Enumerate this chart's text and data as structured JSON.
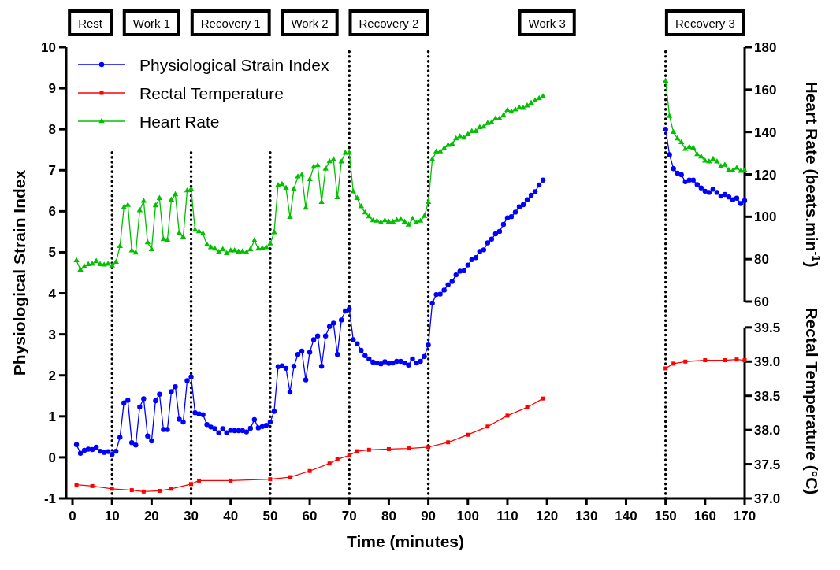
{
  "chart_data": {
    "type": "line",
    "xlabel": "Time (minutes)",
    "ylabel": "Physiological Strain Index",
    "y2label": "Heart Rate (beats.min$^{-1}$)",
    "y3label": "Rectal Temperature (°C)",
    "xlim": [
      -1,
      170
    ],
    "xticks": [
      0,
      10,
      20,
      30,
      40,
      50,
      60,
      70,
      80,
      90,
      100,
      110,
      120,
      130,
      140,
      150,
      160,
      170
    ],
    "ylim": [
      -1,
      10
    ],
    "yticks": [
      -1,
      0,
      1,
      2,
      3,
      4,
      5,
      6,
      7,
      8,
      9,
      10
    ],
    "y2lim": [
      60,
      180
    ],
    "y2ticks": [
      60,
      80,
      100,
      120,
      140,
      160,
      180
    ],
    "y3lim": [
      37,
      39.5
    ],
    "y3ticks": [
      {
        "value": 37,
        "label": "37.0"
      },
      37.5,
      {
        "value": 38,
        "label": "38.0"
      },
      38.5,
      {
        "value": 39,
        "label": "39.0"
      },
      39.5
    ],
    "legend": "top left",
    "line_style": "solid",
    "series": [
      {
        "name": "Physiological Strain Index",
        "color": "#0000ff",
        "marker": "circle",
        "axis": "y",
        "x": [
          1,
          2,
          3,
          4,
          5,
          6,
          7,
          8,
          9,
          10,
          11,
          12,
          13,
          14,
          15,
          16,
          17,
          18,
          19,
          20,
          21,
          22,
          23,
          24,
          25,
          26,
          27,
          28,
          29,
          30,
          31,
          32,
          33,
          34,
          35,
          36,
          37,
          38,
          39,
          40,
          41,
          42,
          43,
          44,
          45,
          46,
          47,
          48,
          49,
          50,
          51,
          52,
          53,
          54,
          55,
          56,
          57,
          58,
          59,
          60,
          61,
          62,
          63,
          64,
          65,
          66,
          67,
          68,
          69,
          70,
          71,
          72,
          73,
          74,
          75,
          76,
          77,
          78,
          79,
          80,
          81,
          82,
          83,
          84,
          85,
          86,
          87,
          88,
          89,
          90,
          91,
          92,
          93,
          94,
          95,
          96,
          97,
          98,
          99,
          100,
          101,
          102,
          103,
          104,
          105,
          106,
          107,
          108,
          109,
          110,
          111,
          112,
          113,
          114,
          115,
          116,
          117,
          118,
          119,
          135,
          150,
          151,
          152,
          153,
          154,
          155,
          156,
          157,
          158,
          159,
          160,
          161,
          162,
          163,
          164,
          165,
          166,
          167,
          168,
          169,
          170
        ],
        "values": [
          0.31,
          0.1,
          0.17,
          0.2,
          0.19,
          0.25,
          0.15,
          0.12,
          0.14,
          0.07,
          0.15,
          0.49,
          1.33,
          1.39,
          0.36,
          0.3,
          1.23,
          1.43,
          0.52,
          0.4,
          1.38,
          1.54,
          0.68,
          0.68,
          1.6,
          1.72,
          0.93,
          0.86,
          1.87,
          1.96,
          1.09,
          1.06,
          1.04,
          0.8,
          0.74,
          0.7,
          0.6,
          0.7,
          0.6,
          0.66,
          0.65,
          0.65,
          0.65,
          0.62,
          0.71,
          0.92,
          0.72,
          0.75,
          0.78,
          0.86,
          1.12,
          2.21,
          2.23,
          2.17,
          1.59,
          2.22,
          2.51,
          2.59,
          1.89,
          2.56,
          2.87,
          2.96,
          2.22,
          2.96,
          3.19,
          3.27,
          2.51,
          3.35,
          3.57,
          3.62,
          2.87,
          2.77,
          2.61,
          2.48,
          2.4,
          2.32,
          2.3,
          2.28,
          2.33,
          2.29,
          2.3,
          2.34,
          2.34,
          2.3,
          2.25,
          2.4,
          2.3,
          2.34,
          2.46,
          2.74,
          3.76,
          3.97,
          3.98,
          4.08,
          4.21,
          4.29,
          4.45,
          4.54,
          4.55,
          4.69,
          4.82,
          4.87,
          5.02,
          5.06,
          5.23,
          5.32,
          5.45,
          5.51,
          5.68,
          5.84,
          5.87,
          5.98,
          6.11,
          6.16,
          6.28,
          6.39,
          6.48,
          6.64,
          6.76,
          null,
          8.0,
          7.38,
          7.04,
          6.93,
          6.89,
          6.72,
          6.76,
          6.76,
          6.65,
          6.57,
          6.49,
          6.46,
          6.54,
          6.46,
          6.37,
          6.41,
          6.35,
          6.28,
          6.32,
          6.19,
          6.26
        ]
      },
      {
        "name": "Rectal Temperature",
        "color": "#ff0000",
        "marker": "square",
        "axis": "y3",
        "x": [
          1,
          5,
          10,
          15,
          18,
          22,
          25,
          30,
          32,
          40,
          50,
          55,
          60,
          65,
          67,
          70,
          72,
          75,
          80,
          85,
          90,
          95,
          100,
          105,
          110,
          115,
          119,
          135,
          150,
          152,
          155,
          160,
          165,
          168,
          170
        ],
        "values": [
          37.2,
          37.18,
          37.14,
          37.12,
          37.1,
          37.11,
          37.14,
          37.21,
          37.26,
          37.26,
          37.28,
          37.31,
          37.4,
          37.51,
          37.57,
          37.63,
          37.69,
          37.71,
          37.72,
          37.73,
          37.75,
          37.82,
          37.93,
          38.05,
          38.21,
          38.33,
          38.46,
          null,
          38.9,
          38.97,
          39.0,
          39.02,
          39.02,
          39.03,
          39.02
        ]
      },
      {
        "name": "Heart Rate",
        "color": "#00c000",
        "marker": "triangle",
        "axis": "y2",
        "x": [
          1,
          2,
          3,
          4,
          5,
          6,
          7,
          8,
          9,
          10,
          11,
          12,
          13,
          14,
          15,
          16,
          17,
          18,
          19,
          20,
          21,
          22,
          23,
          24,
          25,
          26,
          27,
          28,
          29,
          30,
          31,
          32,
          33,
          34,
          35,
          36,
          37,
          38,
          39,
          40,
          41,
          42,
          43,
          44,
          45,
          46,
          47,
          48,
          49,
          50,
          51,
          52,
          53,
          54,
          55,
          56,
          57,
          58,
          59,
          60,
          61,
          62,
          63,
          64,
          65,
          66,
          67,
          68,
          69,
          70,
          71,
          72,
          73,
          74,
          75,
          76,
          77,
          78,
          79,
          80,
          81,
          82,
          83,
          84,
          85,
          86,
          87,
          88,
          89,
          90,
          91,
          92,
          93,
          94,
          95,
          96,
          97,
          98,
          99,
          100,
          101,
          102,
          103,
          104,
          105,
          106,
          107,
          108,
          109,
          110,
          111,
          112,
          113,
          114,
          115,
          116,
          117,
          118,
          119,
          135,
          150,
          151,
          152,
          153,
          154,
          155,
          156,
          157,
          158,
          159,
          160,
          161,
          162,
          163,
          164,
          165,
          166,
          167,
          168,
          169,
          170
        ],
        "values": [
          79.4,
          74.9,
          76.5,
          77.5,
          77.7,
          79.0,
          77.5,
          77.3,
          77.7,
          76.9,
          78.6,
          86.1,
          104.4,
          105.5,
          84.0,
          83.0,
          103.0,
          107.4,
          87.8,
          84.6,
          105.3,
          108.7,
          89.3,
          89.0,
          108.0,
          110.5,
          92.3,
          90.4,
          112.3,
          113.0,
          93.8,
          93.0,
          92.0,
          86.8,
          85.5,
          84.9,
          83.3,
          84.6,
          82.7,
          84.0,
          84.0,
          83.5,
          83.6,
          83.1,
          84.6,
          88.8,
          84.9,
          85.1,
          85.5,
          87.3,
          92.6,
          114.9,
          115.3,
          113.6,
          99.8,
          113.1,
          118.9,
          119.7,
          104.2,
          117.6,
          123.5,
          124.2,
          106.9,
          122.6,
          126.1,
          127.0,
          109.1,
          126.0,
          130.1,
          130.1,
          111.9,
          108.7,
          104.8,
          101.9,
          100.1,
          98.2,
          98.0,
          97.2,
          98.2,
          97.6,
          97.6,
          98.4,
          98.8,
          97.6,
          96.2,
          99.0,
          97.2,
          98.0,
          100.3,
          106.9,
          127.0,
          130.7,
          130.7,
          132.2,
          133.8,
          134.4,
          136.9,
          137.9,
          137.2,
          138.8,
          140.3,
          140.3,
          142.2,
          142.4,
          144.1,
          144.5,
          146.3,
          146.3,
          147.8,
          150.3,
          149.5,
          150.5,
          151.5,
          151.3,
          152.4,
          153.7,
          154.8,
          155.8,
          156.8,
          null,
          164.1,
          147.5,
          139.9,
          136.9,
          135.1,
          131.9,
          132.9,
          132.5,
          129.4,
          128.3,
          126.4,
          126.0,
          127.2,
          126.0,
          123.8,
          124.4,
          122.0,
          121.7,
          123.0,
          121.5,
          121.8
        ]
      }
    ],
    "ref_lines": [
      {
        "axis": "x",
        "value": 10,
        "color": "#000000",
        "line_style": "dotted"
      },
      {
        "axis": "x",
        "value": 30,
        "color": "#000000",
        "line_style": "dotted"
      },
      {
        "axis": "x",
        "value": 50,
        "color": "#000000",
        "line_style": "dotted"
      },
      {
        "axis": "x",
        "value": 70,
        "color": "#000000",
        "line_style": "dotted"
      },
      {
        "axis": "x",
        "value": 90,
        "color": "#000000",
        "line_style": "dotted"
      },
      {
        "axis": "x",
        "value": 150,
        "color": "#000000",
        "line_style": "dotted"
      }
    ],
    "annotations": [
      "Rest",
      "Work 1",
      "Recovery 1",
      "Work 2",
      "Recovery 2",
      "Work 3",
      "Recovery 3"
    ]
  }
}
